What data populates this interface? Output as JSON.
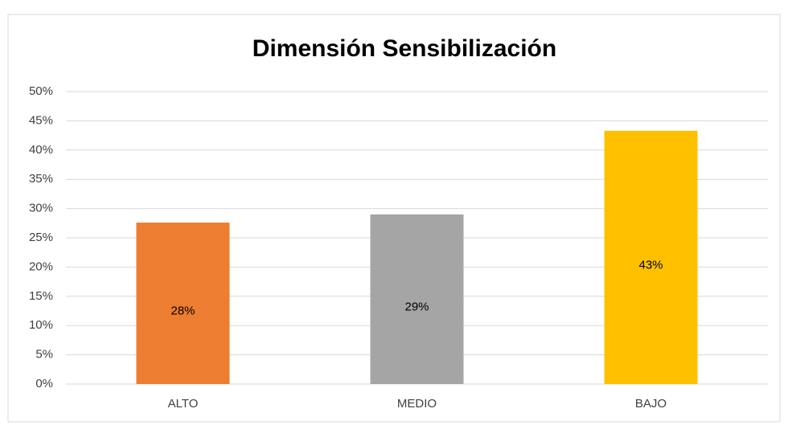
{
  "chart_data": {
    "type": "bar",
    "title": "Dimensión Sensibilización",
    "categories": [
      "ALTO",
      "MEDIO",
      "BAJO"
    ],
    "values": [
      27.6,
      29.0,
      43.3
    ],
    "value_labels": [
      "28%",
      "29%",
      "43%"
    ],
    "colors": [
      "#ed7d31",
      "#a5a5a5",
      "#ffc000"
    ],
    "ylim": [
      0,
      50
    ],
    "yticks": [
      {
        "value": 0,
        "label": "0%"
      },
      {
        "value": 5,
        "label": "5%"
      },
      {
        "value": 10,
        "label": "10%"
      },
      {
        "value": 15,
        "label": "15%"
      },
      {
        "value": 20,
        "label": "20%"
      },
      {
        "value": 25,
        "label": "25%"
      },
      {
        "value": 30,
        "label": "30%"
      },
      {
        "value": 35,
        "label": "35%"
      },
      {
        "value": 40,
        "label": "40%"
      },
      {
        "value": 45,
        "label": "45%"
      },
      {
        "value": 50,
        "label": "50%"
      }
    ],
    "grid": true
  }
}
